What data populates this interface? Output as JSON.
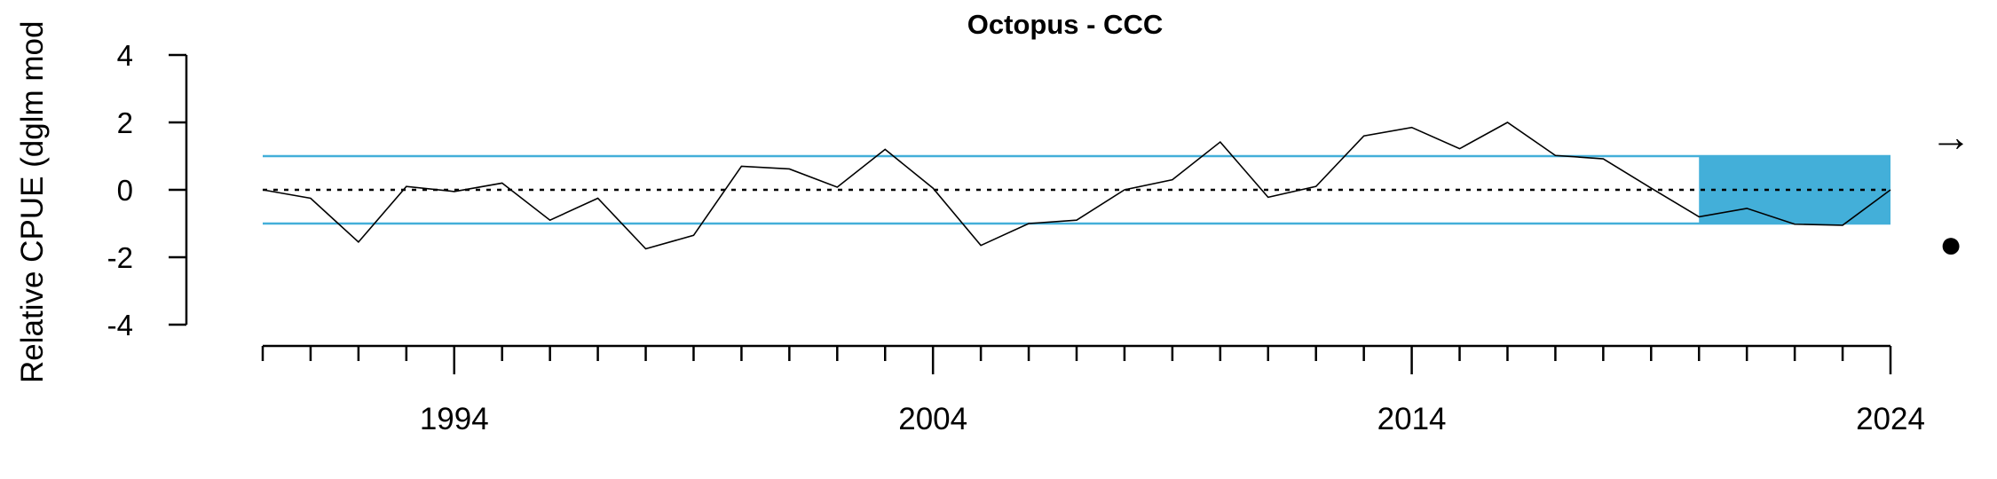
{
  "chart_data": {
    "type": "line",
    "title": "Octopus - CCC",
    "ylabel": "Relative CPUE (dglm mod",
    "xlabel": "",
    "ylim": [
      -4,
      4
    ],
    "yticks": [
      4,
      2,
      0,
      -2,
      -4
    ],
    "xlim": [
      1990,
      2024
    ],
    "xtick_labels": [
      1994,
      2004,
      2014,
      2024
    ],
    "x": [
      1990,
      1991,
      1992,
      1993,
      1994,
      1995,
      1996,
      1997,
      1998,
      1999,
      2000,
      2001,
      2002,
      2003,
      2004,
      2005,
      2006,
      2007,
      2008,
      2009,
      2010,
      2011,
      2012,
      2013,
      2014,
      2015,
      2016,
      2017,
      2018,
      2019,
      2020,
      2021,
      2022,
      2023,
      2024
    ],
    "series": [
      {
        "values": [
          0.0,
          -0.25,
          -1.55,
          0.1,
          -0.05,
          0.2,
          -0.9,
          -0.25,
          -1.75,
          -1.35,
          0.7,
          0.62,
          0.08,
          1.2,
          0.05,
          -1.65,
          -1.0,
          -0.9,
          0.0,
          0.3,
          1.42,
          -0.22,
          0.1,
          1.6,
          1.85,
          1.22,
          2.0,
          1.02,
          0.92,
          0.05,
          -0.8,
          -0.55,
          -1.02,
          -1.05,
          0.0
        ]
      }
    ],
    "reference_lines": [
      1,
      0,
      -1
    ],
    "highlight": {
      "x_from": 2020,
      "x_to": 2024,
      "y_from": -1,
      "y_to": 1,
      "color": "#43afd9"
    },
    "colors": {
      "band_lines": "#43afd9",
      "series": "#000000",
      "zero_line": "#000000"
    },
    "status_arrow": "→",
    "status_dot": "●"
  }
}
